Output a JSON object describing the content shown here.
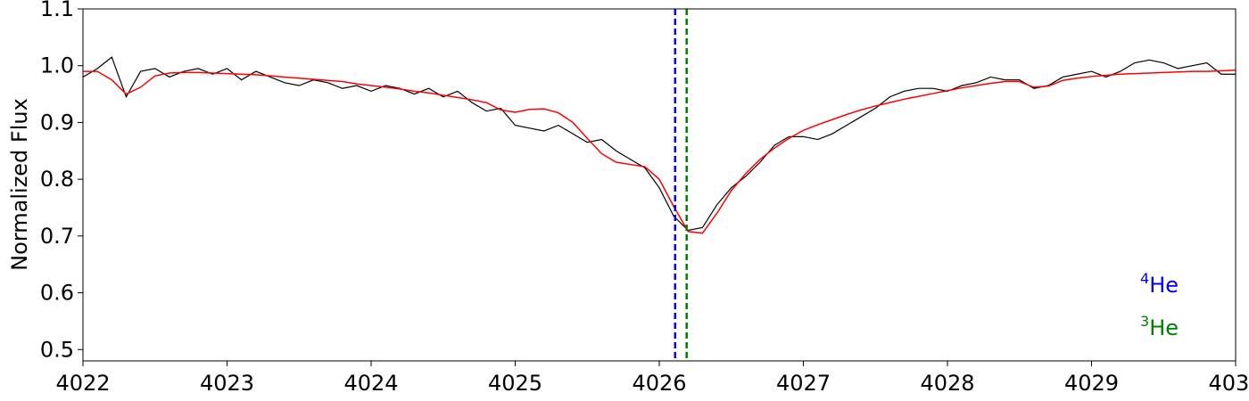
{
  "chart_data": {
    "type": "line",
    "ylabel": "Normalized Flux",
    "x": [
      4022,
      4022.1,
      4022.2,
      4022.3,
      4022.4,
      4022.5,
      4022.6,
      4022.7,
      4022.8,
      4022.9,
      4023,
      4023.1,
      4023.2,
      4023.3,
      4023.4,
      4023.5,
      4023.6,
      4023.7,
      4023.8,
      4023.9,
      4024,
      4024.1,
      4024.2,
      4024.3,
      4024.4,
      4024.5,
      4024.6,
      4024.7,
      4024.8,
      4024.9,
      4025,
      4025.1,
      4025.2,
      4025.3,
      4025.4,
      4025.5,
      4025.6,
      4025.7,
      4025.8,
      4025.9,
      4026,
      4026.1,
      4026.2,
      4026.3,
      4026.4,
      4026.5,
      4026.6,
      4026.7,
      4026.8,
      4026.9,
      4027,
      4027.1,
      4027.2,
      4027.3,
      4027.4,
      4027.5,
      4027.6,
      4027.7,
      4027.8,
      4027.9,
      4028,
      4028.1,
      4028.2,
      4028.3,
      4028.4,
      4028.5,
      4028.6,
      4028.7,
      4028.8,
      4028.9,
      4029,
      4029.1,
      4029.2,
      4029.3,
      4029.4,
      4029.5,
      4029.6,
      4029.7,
      4029.8,
      4029.9,
      4030
    ],
    "series": [
      {
        "color": "#000000",
        "values": [
          0.98,
          0.995,
          1.015,
          0.945,
          0.99,
          0.995,
          0.98,
          0.99,
          0.995,
          0.985,
          0.995,
          0.975,
          0.99,
          0.98,
          0.97,
          0.965,
          0.975,
          0.97,
          0.96,
          0.965,
          0.955,
          0.965,
          0.96,
          0.95,
          0.96,
          0.945,
          0.955,
          0.935,
          0.92,
          0.925,
          0.895,
          0.89,
          0.885,
          0.895,
          0.88,
          0.865,
          0.87,
          0.85,
          0.835,
          0.82,
          0.785,
          0.735,
          0.71,
          0.715,
          0.755,
          0.785,
          0.805,
          0.83,
          0.86,
          0.875,
          0.875,
          0.87,
          0.88,
          0.895,
          0.91,
          0.925,
          0.945,
          0.955,
          0.96,
          0.96,
          0.955,
          0.965,
          0.97,
          0.98,
          0.975,
          0.975,
          0.96,
          0.965,
          0.98,
          0.985,
          0.99,
          0.98,
          0.99,
          1.005,
          1.01,
          1.005,
          0.995,
          1.0,
          1.005,
          0.985,
          0.985
        ]
      },
      {
        "color": "#ff0000",
        "values": [
          0.99,
          0.99,
          0.975,
          0.95,
          0.962,
          0.982,
          0.987,
          0.988,
          0.988,
          0.987,
          0.986,
          0.985,
          0.984,
          0.982,
          0.98,
          0.978,
          0.976,
          0.974,
          0.972,
          0.968,
          0.965,
          0.962,
          0.959,
          0.955,
          0.952,
          0.948,
          0.944,
          0.94,
          0.935,
          0.922,
          0.918,
          0.923,
          0.924,
          0.917,
          0.9,
          0.872,
          0.845,
          0.83,
          0.826,
          0.822,
          0.8,
          0.752,
          0.708,
          0.705,
          0.74,
          0.78,
          0.81,
          0.835,
          0.855,
          0.872,
          0.886,
          0.896,
          0.905,
          0.914,
          0.922,
          0.929,
          0.935,
          0.941,
          0.946,
          0.951,
          0.956,
          0.961,
          0.965,
          0.969,
          0.972,
          0.972,
          0.962,
          0.964,
          0.974,
          0.978,
          0.981,
          0.983,
          0.985,
          0.986,
          0.987,
          0.988,
          0.989,
          0.99,
          0.99,
          0.991,
          0.992
        ]
      }
    ],
    "markers": [
      {
        "x": 4026.11,
        "color": "#0000ff",
        "sup": "4",
        "label": "He"
      },
      {
        "x": 4026.19,
        "color": "#008000",
        "sup": "3",
        "label": "He"
      }
    ],
    "xlim": [
      4022,
      4030
    ],
    "xticks": [
      4022,
      4023,
      4024,
      4025,
      4026,
      4027,
      4028,
      4029,
      4030
    ],
    "ylim": [
      0.48,
      1.1
    ],
    "yticks": [
      0.5,
      0.6,
      0.7,
      0.8,
      0.9,
      {
        "value": 1,
        "label": "1.0"
      },
      1.1
    ]
  }
}
